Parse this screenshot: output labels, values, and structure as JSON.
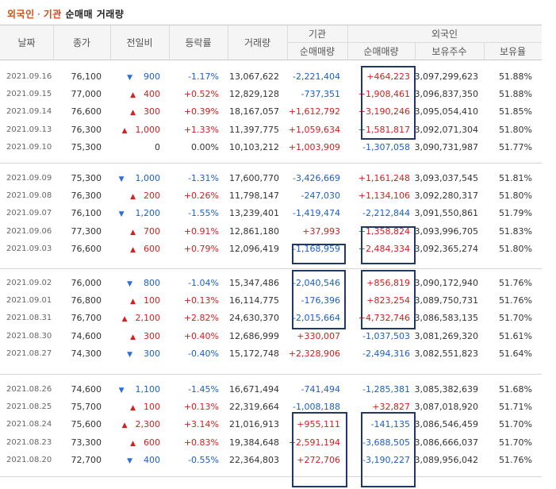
{
  "title": {
    "part1": "외국인",
    "dot": "·",
    "part2": "기관",
    "rest": "순매매 거래량"
  },
  "headers": {
    "date": "날짜",
    "close": "종가",
    "change": "전일비",
    "rate": "등락률",
    "volume": "거래량",
    "inst": "기관",
    "inst_net": "순매매량",
    "foreign": "외국인",
    "foreign_net": "순매매량",
    "foreign_shares": "보유주수",
    "foreign_ratio": "보유율"
  },
  "groups": [
    [
      {
        "date": "2021.09.16",
        "close": "76,100",
        "dir": "down",
        "chg": "900",
        "rate": "-1.17%",
        "vol": "13,067,622",
        "inst": "-2,221,404",
        "frgn": "+464,223",
        "shares": "3,097,299,623",
        "ratio": "51.88%"
      },
      {
        "date": "2021.09.15",
        "close": "77,000",
        "dir": "up",
        "chg": "400",
        "rate": "+0.52%",
        "vol": "12,829,128",
        "inst": "-737,351",
        "frgn": "+1,908,461",
        "shares": "3,096,837,350",
        "ratio": "51.88%"
      },
      {
        "date": "2021.09.14",
        "close": "76,600",
        "dir": "up",
        "chg": "300",
        "rate": "+0.39%",
        "vol": "18,167,057",
        "inst": "+1,612,792",
        "frgn": "+3,190,246",
        "shares": "3,095,054,410",
        "ratio": "51.85%"
      },
      {
        "date": "2021.09.13",
        "close": "76,300",
        "dir": "up",
        "chg": "1,000",
        "rate": "+1.33%",
        "vol": "11,397,775",
        "inst": "+1,059,634",
        "frgn": "+1,581,817",
        "shares": "3,092,071,304",
        "ratio": "51.80%"
      },
      {
        "date": "2021.09.10",
        "close": "75,300",
        "dir": "none",
        "chg": "0",
        "rate": "0.00%",
        "vol": "10,103,212",
        "inst": "+1,003,909",
        "frgn": "-1,307,058",
        "shares": "3,090,731,987",
        "ratio": "51.77%"
      }
    ],
    [
      {
        "date": "2021.09.09",
        "close": "75,300",
        "dir": "down",
        "chg": "1,000",
        "rate": "-1.31%",
        "vol": "17,600,770",
        "inst": "-3,426,669",
        "frgn": "+1,161,248",
        "shares": "3,093,037,545",
        "ratio": "51.81%"
      },
      {
        "date": "2021.09.08",
        "close": "76,300",
        "dir": "up",
        "chg": "200",
        "rate": "+0.26%",
        "vol": "11,798,147",
        "inst": "-247,030",
        "frgn": "+1,134,106",
        "shares": "3,092,280,317",
        "ratio": "51.80%"
      },
      {
        "date": "2021.09.07",
        "close": "76,100",
        "dir": "down",
        "chg": "1,200",
        "rate": "-1.55%",
        "vol": "13,239,401",
        "inst": "-1,419,474",
        "frgn": "-2,212,844",
        "shares": "3,091,550,861",
        "ratio": "51.79%"
      },
      {
        "date": "2021.09.06",
        "close": "77,300",
        "dir": "up",
        "chg": "700",
        "rate": "+0.91%",
        "vol": "12,861,180",
        "inst": "+37,993",
        "frgn": "+1,358,824",
        "shares": "3,093,996,705",
        "ratio": "51.83%"
      },
      {
        "date": "2021.09.03",
        "close": "76,600",
        "dir": "up",
        "chg": "600",
        "rate": "+0.79%",
        "vol": "12,096,419",
        "inst": "-1,168,959",
        "frgn": "+2,484,334",
        "shares": "3,092,365,274",
        "ratio": "51.80%"
      }
    ],
    [
      {
        "date": "2021.09.02",
        "close": "76,000",
        "dir": "down",
        "chg": "800",
        "rate": "-1.04%",
        "vol": "15,347,486",
        "inst": "-2,040,546",
        "frgn": "+856,819",
        "shares": "3,090,172,940",
        "ratio": "51.76%"
      },
      {
        "date": "2021.09.01",
        "close": "76,800",
        "dir": "up",
        "chg": "100",
        "rate": "+0.13%",
        "vol": "16,114,775",
        "inst": "-176,396",
        "frgn": "+823,254",
        "shares": "3,089,750,731",
        "ratio": "51.76%"
      },
      {
        "date": "2021.08.31",
        "close": "76,700",
        "dir": "up",
        "chg": "2,100",
        "rate": "+2.82%",
        "vol": "24,630,370",
        "inst": "-2,015,664",
        "frgn": "+4,732,746",
        "shares": "3,086,583,135",
        "ratio": "51.70%"
      },
      {
        "date": "2021.08.30",
        "close": "74,600",
        "dir": "up",
        "chg": "300",
        "rate": "+0.40%",
        "vol": "12,686,999",
        "inst": "+330,007",
        "frgn": "-1,037,503",
        "shares": "3,081,269,320",
        "ratio": "51.61%"
      },
      {
        "date": "2021.08.27",
        "close": "74,300",
        "dir": "down",
        "chg": "300",
        "rate": "-0.40%",
        "vol": "15,172,748",
        "inst": "+2,328,906",
        "frgn": "-2,494,316",
        "shares": "3,082,551,823",
        "ratio": "51.64%"
      }
    ],
    [
      {
        "date": "2021.08.26",
        "close": "74,600",
        "dir": "down",
        "chg": "1,100",
        "rate": "-1.45%",
        "vol": "16,671,494",
        "inst": "-741,494",
        "frgn": "-1,285,381",
        "shares": "3,085,382,639",
        "ratio": "51.68%"
      },
      {
        "date": "2021.08.25",
        "close": "75,700",
        "dir": "up",
        "chg": "100",
        "rate": "+0.13%",
        "vol": "22,319,664",
        "inst": "-1,008,188",
        "frgn": "+32,827",
        "shares": "3,087,018,920",
        "ratio": "51.71%"
      },
      {
        "date": "2021.08.24",
        "close": "75,600",
        "dir": "up",
        "chg": "2,300",
        "rate": "+3.14%",
        "vol": "21,016,913",
        "inst": "+955,111",
        "frgn": "-141,135",
        "shares": "3,086,546,459",
        "ratio": "51.70%"
      },
      {
        "date": "2021.08.23",
        "close": "73,300",
        "dir": "up",
        "chg": "600",
        "rate": "+0.83%",
        "vol": "19,384,648",
        "inst": "+2,591,194",
        "frgn": "-3,688,505",
        "shares": "3,086,666,037",
        "ratio": "51.70%"
      },
      {
        "date": "2021.08.20",
        "close": "72,700",
        "dir": "down",
        "chg": "400",
        "rate": "-0.55%",
        "vol": "22,364,803",
        "inst": "+272,706",
        "frgn": "-3,190,227",
        "shares": "3,089,956,042",
        "ratio": "51.76%"
      }
    ]
  ],
  "colors": {
    "up": "#d42020",
    "down": "#1c5fc9",
    "highlight_box": "#1f3864",
    "title_accent": "#d44c13"
  }
}
